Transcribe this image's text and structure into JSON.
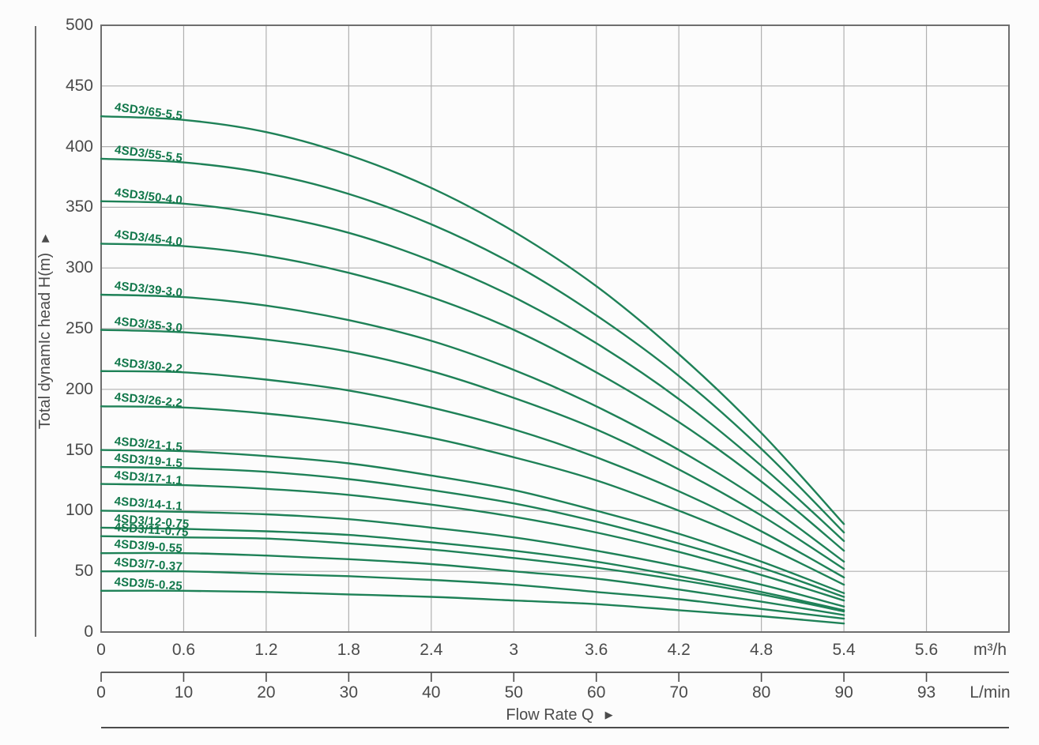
{
  "chart_data": {
    "type": "line",
    "title": "",
    "xlabel": "Flow Rate Q",
    "ylabel": "Total dynamIc head H(m)",
    "grid": true,
    "legend_position": "inline-curve-labels",
    "curve_color": "#1e8157",
    "x_axis": {
      "m3h": {
        "ticks": [
          "0",
          "0.6",
          "1.2",
          "1.8",
          "2.4",
          "3",
          "3.6",
          "4.2",
          "4.8",
          "5.4",
          "5.6"
        ],
        "unit": "m³/h"
      },
      "lmin": {
        "ticks": [
          "0",
          "10",
          "20",
          "30",
          "40",
          "50",
          "60",
          "70",
          "80",
          "90",
          "93"
        ],
        "unit": "L/min"
      }
    },
    "y_axis": {
      "ticks": [
        "0",
        "50",
        "100",
        "150",
        "200",
        "250",
        "300",
        "350",
        "400",
        "450",
        "500"
      ],
      "range": [
        0,
        500
      ]
    },
    "x_values_m3h": [
      0,
      0.6,
      1.2,
      1.8,
      2.4,
      3.0,
      3.6,
      4.2,
      4.8,
      5.4
    ],
    "series": [
      {
        "name": "4SD3/65-5.5",
        "values": [
          425,
          422,
          412,
          393,
          366,
          330,
          285,
          229,
          164,
          89
        ]
      },
      {
        "name": "4SD3/55-5.5",
        "values": [
          390,
          387,
          378,
          361,
          336,
          303,
          261,
          211,
          151,
          82
        ]
      },
      {
        "name": "4SD3/50-4.0",
        "values": [
          355,
          353,
          344,
          329,
          306,
          276,
          238,
          192,
          137,
          75
        ]
      },
      {
        "name": "4SD3/45-4.0",
        "values": [
          320,
          318,
          310,
          296,
          276,
          249,
          214,
          173,
          124,
          67
        ]
      },
      {
        "name": "4SD3/39-3.0",
        "values": [
          278,
          276,
          269,
          257,
          240,
          216,
          186,
          150,
          108,
          58
        ]
      },
      {
        "name": "4SD3/35-3.0",
        "values": [
          249,
          247,
          241,
          231,
          215,
          193,
          167,
          134,
          96,
          52
        ]
      },
      {
        "name": "4SD3/30-2.2",
        "values": [
          215,
          214,
          208,
          199,
          185,
          167,
          144,
          116,
          83,
          45
        ]
      },
      {
        "name": "4SD3/26-2.2",
        "values": [
          186,
          185,
          180,
          172,
          160,
          144,
          125,
          100,
          72,
          39
        ]
      },
      {
        "name": "4SD3/21-1.5",
        "values": [
          150,
          149,
          145,
          139,
          129,
          117,
          100,
          81,
          58,
          32
        ]
      },
      {
        "name": "4SD3/19-1.5",
        "values": [
          136,
          135,
          132,
          126,
          117,
          106,
          91,
          73,
          53,
          29
        ]
      },
      {
        "name": "4SD3/17-1.1",
        "values": [
          122,
          121,
          118,
          113,
          105,
          95,
          82,
          66,
          47,
          26
        ]
      },
      {
        "name": "4SD3/14-1.1",
        "values": [
          100,
          99,
          97,
          93,
          86,
          78,
          67,
          54,
          39,
          21
        ]
      },
      {
        "name": "4SD3/12-0.75",
        "values": [
          86,
          85,
          83,
          80,
          74,
          67,
          58,
          46,
          33,
          18
        ]
      },
      {
        "name": "4SD3/11-0.75",
        "values": [
          79,
          78,
          77,
          73,
          68,
          61,
          53,
          43,
          31,
          17
        ]
      },
      {
        "name": "4SD3/9-0.55",
        "values": [
          65,
          65,
          63,
          60,
          56,
          50,
          44,
          35,
          25,
          14
        ]
      },
      {
        "name": "4SD3/7-0.37",
        "values": [
          50,
          50,
          48,
          46,
          43,
          39,
          33,
          27,
          19,
          11
        ]
      },
      {
        "name": "4SD3/5-0.25",
        "values": [
          34,
          34,
          33,
          31,
          29,
          26,
          23,
          18,
          13,
          7
        ]
      }
    ]
  },
  "icons": {
    "arrow": "▶"
  },
  "colors": {
    "curve": "#1e8157",
    "curve_label": "#11774a",
    "grid": "#b0b0b0",
    "plot_border": "#6e6e6e",
    "axis_line": "#4b4b4b",
    "text": "#4b4b4b",
    "background": "#fcfcfc"
  }
}
